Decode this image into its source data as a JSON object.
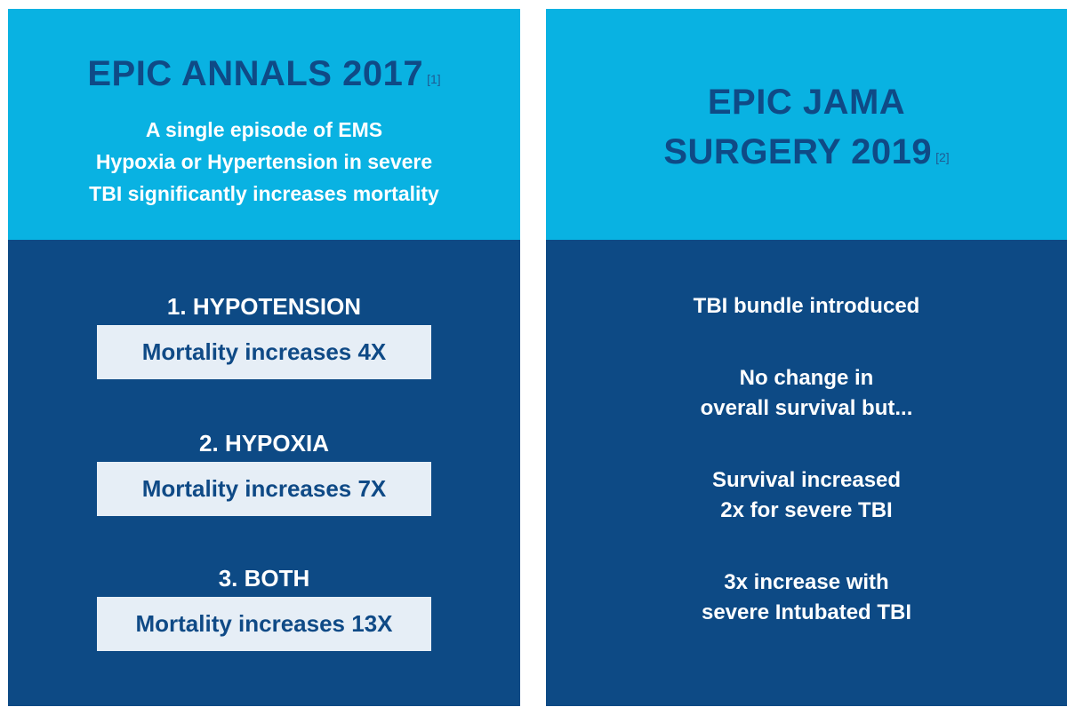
{
  "left_panel": {
    "title": "EPIC ANNALS 2017",
    "ref": "[1]",
    "subtitle": "A single episode of EMS\nHypoxia or Hypertension in severe\nTBI significantly increases mortality",
    "categories": [
      {
        "label": "1. HYPOTENSION",
        "stat": "Mortality increases 4X"
      },
      {
        "label": "2. HYPOXIA",
        "stat": "Mortality increases 7X"
      },
      {
        "label": "3. BOTH",
        "stat": "Mortality increases 13X"
      }
    ]
  },
  "right_panel": {
    "title_line1": "EPIC JAMA",
    "title_line2": "SURGERY 2019",
    "ref": "[2]",
    "findings": [
      "TBI bundle introduced",
      "No change in\noverall survival but...",
      "Survival increased\n2x for severe TBI",
      "3x increase with\nsevere Intubated TBI"
    ]
  },
  "colors": {
    "light_blue": "#09b2e2",
    "dark_blue": "#0d4a85",
    "box_fill": "#e6eef6",
    "heading_text": "#0f4a86"
  }
}
